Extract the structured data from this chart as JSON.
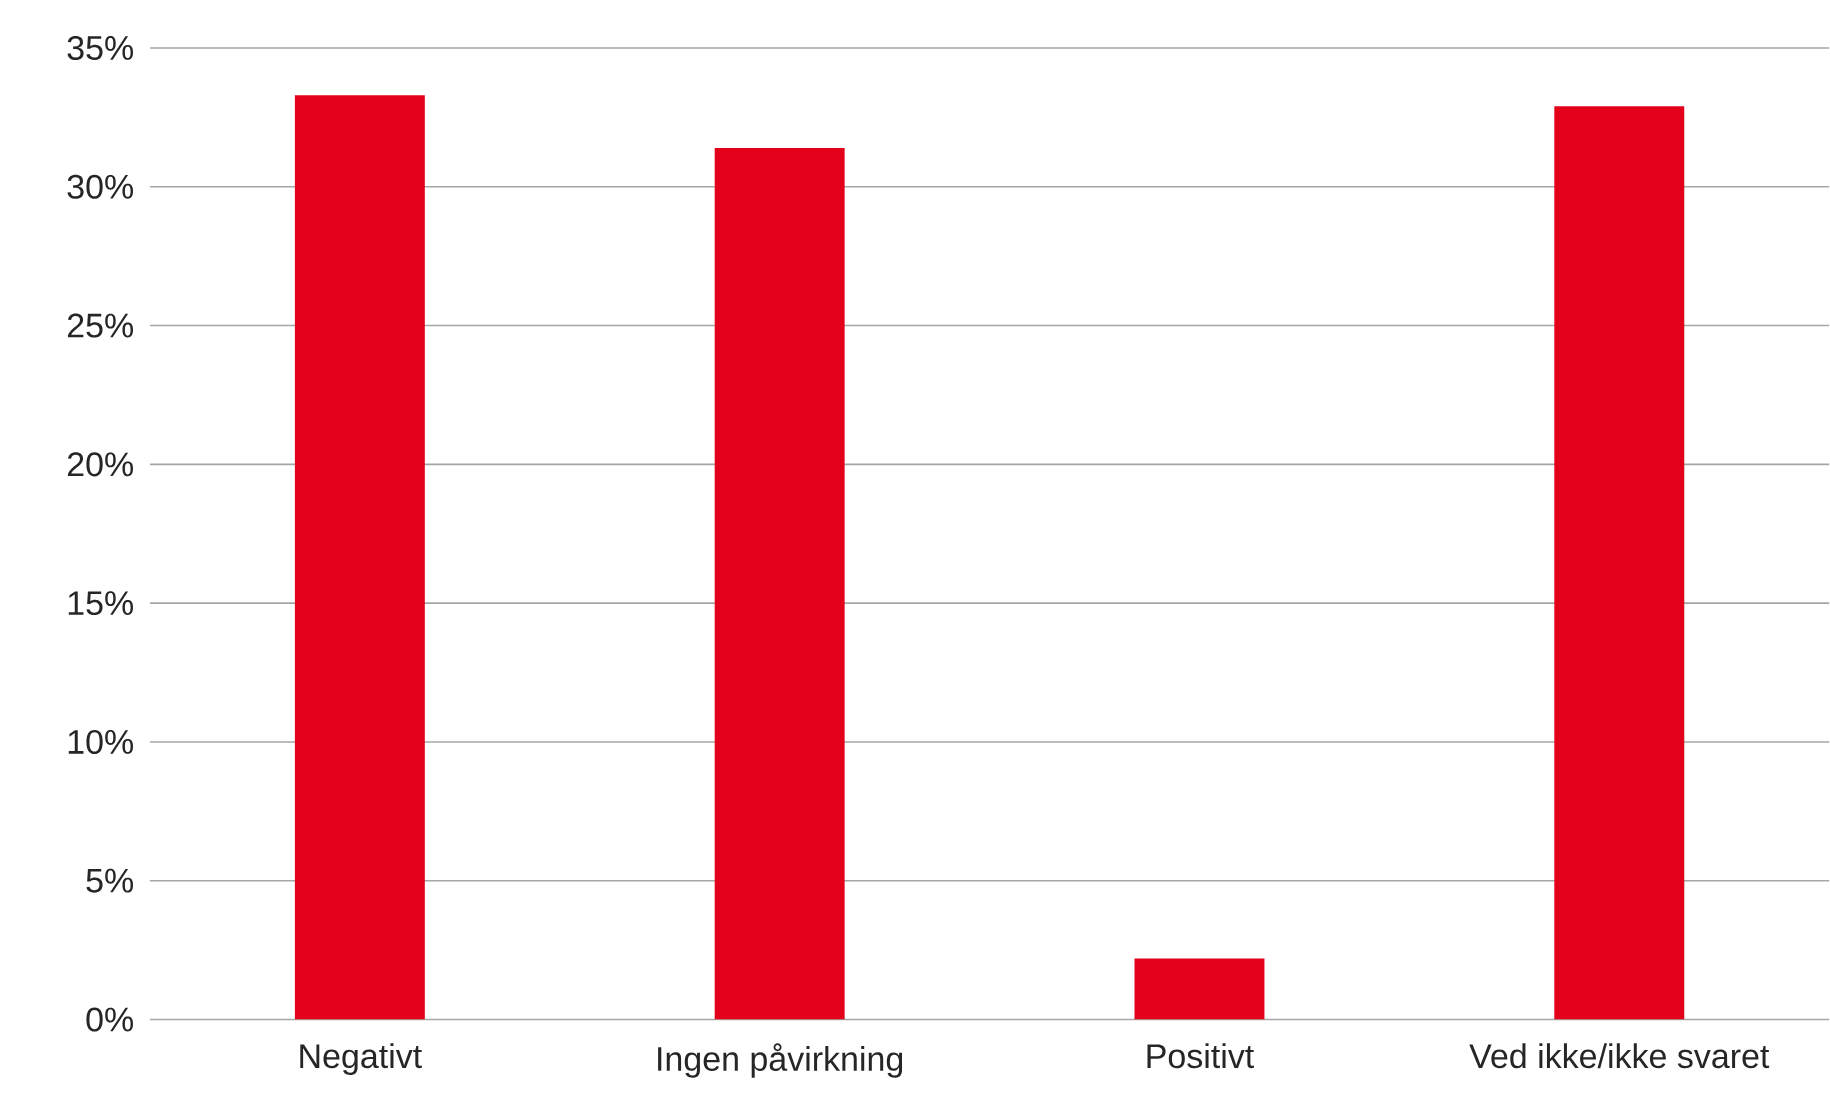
{
  "chart_data": {
    "type": "bar",
    "categories": [
      "Negativt",
      "Ingen påvirkning",
      "Positivt",
      "Ved ikke/ikke svaret"
    ],
    "values": [
      33.3,
      31.4,
      2.2,
      32.9
    ],
    "color": "#e2001a",
    "ylim": [
      0,
      35
    ],
    "yticks": [
      {
        "value": 0,
        "label": "0%"
      },
      {
        "value": 5,
        "label": "5%"
      },
      {
        "value": 10,
        "label": "10%"
      },
      {
        "value": 15,
        "label": "15%"
      },
      {
        "value": 20,
        "label": "20%"
      },
      {
        "value": 25,
        "label": "25%"
      },
      {
        "value": 30,
        "label": "30%"
      },
      {
        "value": 35,
        "label": "35%"
      }
    ],
    "grid": "y"
  }
}
